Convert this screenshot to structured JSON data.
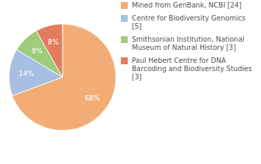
{
  "chart_data": {
    "type": "pie",
    "categories": [
      "Mined from GenBank, NCBI [24]",
      "Centre for Biodiversity Genomics [5]",
      "Smithsonian Institution, National Museum of Natural History [3]",
      "Paul Hebert Centre for DNA Barcoding and Biodiversity Studies [3]"
    ],
    "values": [
      68,
      14,
      8,
      8
    ],
    "value_labels": [
      "68%",
      "14%",
      "8%",
      "8%"
    ],
    "colors": [
      "#f2ad76",
      "#a7bfe3",
      "#9dcc7b",
      "#e37c5f"
    ],
    "data_labels": true,
    "legend": "right"
  }
}
